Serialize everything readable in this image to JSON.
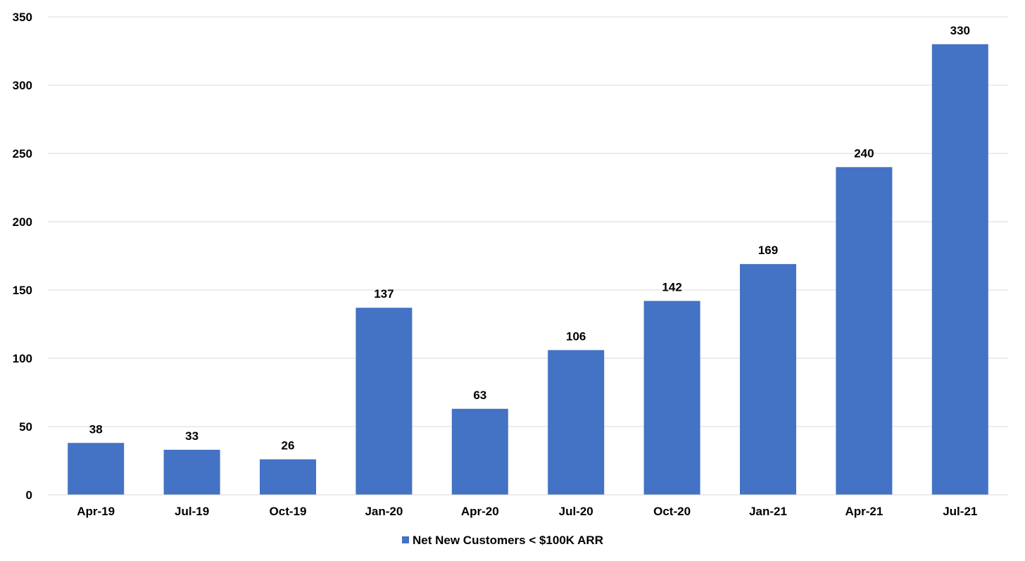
{
  "chart_data": {
    "type": "bar",
    "categories": [
      "Apr-19",
      "Jul-19",
      "Oct-19",
      "Jan-20",
      "Apr-20",
      "Jul-20",
      "Oct-20",
      "Jan-21",
      "Apr-21",
      "Jul-21"
    ],
    "series": [
      {
        "name": "Net New Customers < $100K ARR",
        "values": [
          38,
          33,
          26,
          137,
          63,
          106,
          142,
          169,
          240,
          330
        ],
        "color": "#4472C4"
      }
    ],
    "data_labels": [
      "38",
      "33",
      "26",
      "137",
      "63",
      "106",
      "142",
      "169",
      "240",
      "330"
    ],
    "yticks": [
      0,
      50,
      100,
      150,
      200,
      250,
      300,
      350
    ],
    "ylim": [
      0,
      350
    ],
    "grid": true,
    "gridline_color": "#d9d9d9",
    "legend_position": "bottom",
    "title": "",
    "xlabel": "",
    "ylabel": ""
  }
}
